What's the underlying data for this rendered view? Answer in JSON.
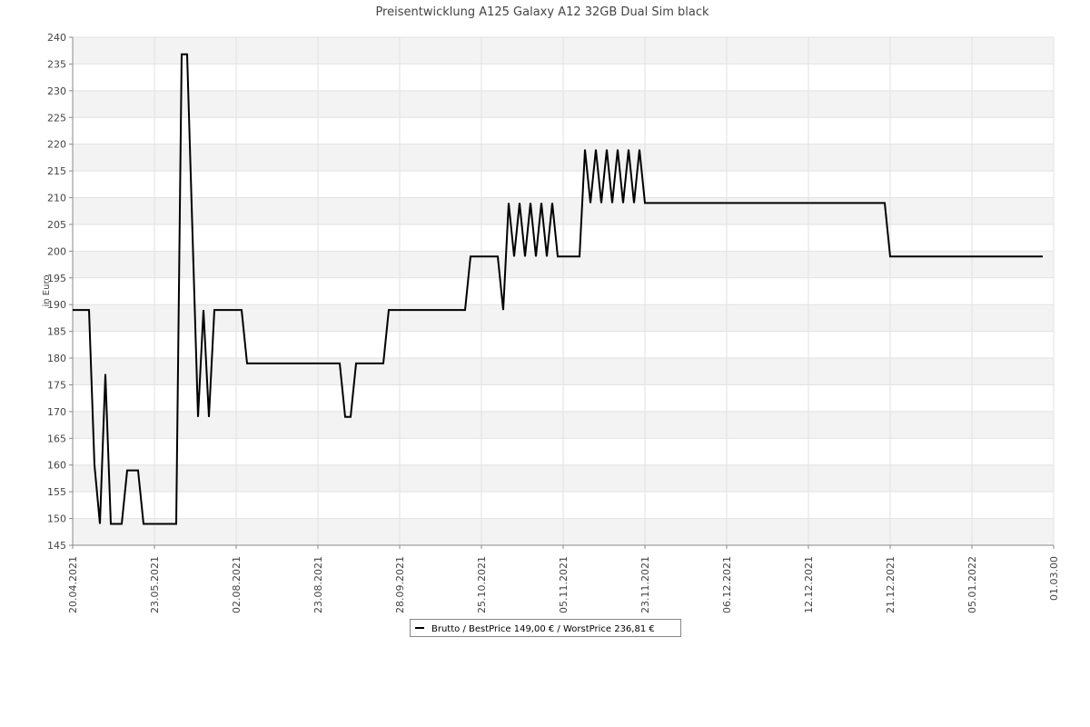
{
  "chart_data": {
    "type": "line",
    "title": "Preisentwicklung A125 Galaxy A12 32GB Dual Sim black",
    "y_label": "in Euro",
    "x": [
      0,
      3,
      4,
      5,
      6,
      7,
      9,
      10,
      12,
      13,
      19,
      20,
      21,
      23,
      24,
      25,
      26,
      31,
      32,
      49,
      50,
      51,
      52,
      57,
      58,
      72,
      73,
      78,
      79,
      80,
      81,
      82,
      83,
      84,
      85,
      86,
      87,
      88,
      89,
      93,
      94,
      95,
      96,
      97,
      98,
      99,
      100,
      101,
      102,
      103,
      104,
      105,
      149,
      150,
      178
    ],
    "series": [
      {
        "name": "Brutto / BestPrice  149,00 € / WorstPrice  236,81 €",
        "color": "#000000",
        "values": [
          189,
          189,
          160,
          149,
          177,
          149,
          149,
          159,
          159,
          149,
          149,
          236.81,
          236.81,
          169,
          189,
          169,
          189,
          189,
          179,
          179,
          169,
          169,
          179,
          179,
          189,
          189,
          199,
          199,
          189,
          209,
          199,
          209,
          199,
          209,
          199,
          209,
          199,
          209,
          199,
          199,
          219,
          209,
          219,
          209,
          219,
          209,
          219,
          209,
          219,
          209,
          219,
          209,
          209,
          199,
          199
        ]
      }
    ],
    "xlim": [
      0,
      180
    ],
    "xticks": [
      {
        "value": 0,
        "label": "20.04.2021"
      },
      {
        "value": 15,
        "label": "23.05.2021"
      },
      {
        "value": 30,
        "label": "02.08.2021"
      },
      {
        "value": 45,
        "label": "23.08.2021"
      },
      {
        "value": 60,
        "label": "28.09.2021"
      },
      {
        "value": 75,
        "label": "25.10.2021"
      },
      {
        "value": 90,
        "label": "05.11.2021"
      },
      {
        "value": 105,
        "label": "23.11.2021"
      },
      {
        "value": 120,
        "label": "06.12.2021"
      },
      {
        "value": 135,
        "label": "12.12.2021"
      },
      {
        "value": 150,
        "label": "21.12.2021"
      },
      {
        "value": 165,
        "label": "05.01.2022"
      },
      {
        "value": 180,
        "label": "01.03.00"
      }
    ],
    "ylim": [
      145,
      240
    ],
    "yticks": [
      145,
      150,
      155,
      160,
      165,
      170,
      175,
      180,
      185,
      190,
      195,
      200,
      205,
      210,
      215,
      220,
      225,
      230,
      235,
      240
    ],
    "grid": true
  }
}
